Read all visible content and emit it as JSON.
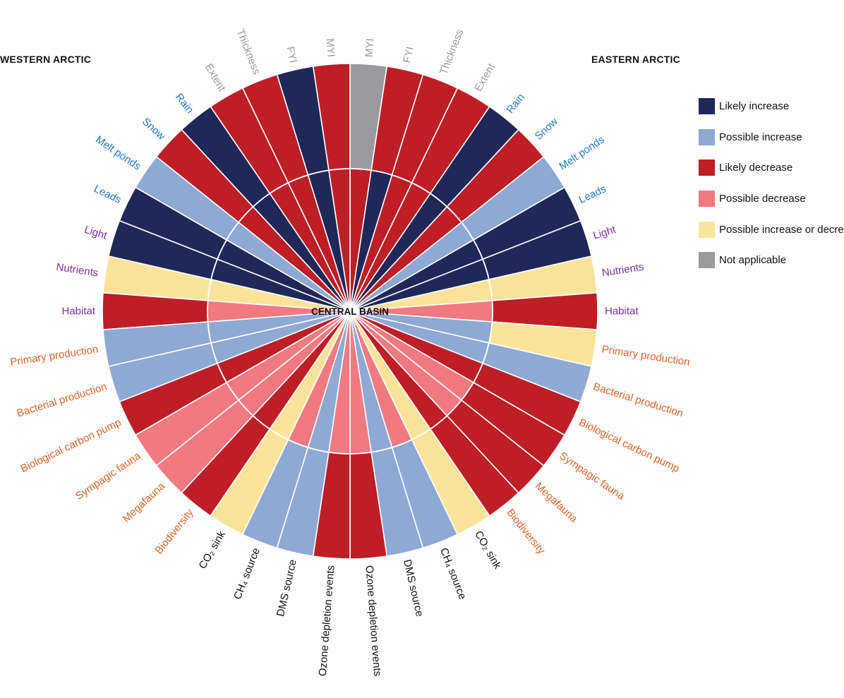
{
  "titles": {
    "western": "WESTERN ARCTIC",
    "eastern": "EASTERN ARCTIC",
    "center": "CENTRAL BASIN"
  },
  "legend": [
    {
      "key": "likely_increase",
      "label": "Likely increase",
      "color": "#1f2859"
    },
    {
      "key": "possible_increase",
      "label": "Possible increase",
      "color": "#8fa9d5"
    },
    {
      "key": "likely_decrease",
      "label": "Likely decrease",
      "color": "#be1e26"
    },
    {
      "key": "possible_decrease",
      "label": "Possible decrease",
      "color": "#f17a82"
    },
    {
      "key": "possible_either",
      "label": "Possible increase or decrease",
      "color": "#fbe49a"
    },
    {
      "key": "not_applicable",
      "label": "Not applicable",
      "color": "#9b9b9d"
    }
  ],
  "chart_data": {
    "type": "radial",
    "categories": [
      "MYI",
      "FYI",
      "Thickness",
      "Extent",
      "Rain",
      "Snow",
      "Melt ponds",
      "Leads",
      "Light",
      "Nutrients",
      "Habitat",
      "Primary production",
      "Bacterial production",
      "Biological carbon pump",
      "Sympagic fauna",
      "Megafauna",
      "Biodiversity",
      "CO₂ sink",
      "CH₄ source",
      "DMS source",
      "Ozone depletion events"
    ],
    "category_groups": [
      {
        "color": "#9a9a9a",
        "members": [
          "MYI",
          "FYI",
          "Thickness",
          "Extent"
        ]
      },
      {
        "color": "#1f78c8",
        "members": [
          "Rain",
          "Snow",
          "Melt ponds",
          "Leads"
        ]
      },
      {
        "color": "#7b2fa6",
        "members": [
          "Light",
          "Nutrients",
          "Habitat"
        ]
      },
      {
        "color": "#e06325",
        "members": [
          "Primary production",
          "Bacterial production",
          "Biological carbon pump",
          "Sympagic fauna",
          "Megafauna",
          "Biodiversity"
        ]
      },
      {
        "color": "#111111",
        "members": [
          "CO₂ sink",
          "CH₄ source",
          "DMS source",
          "Ozone depletion events"
        ]
      }
    ],
    "western_arctic": {
      "outer_ring": [
        "likely_decrease",
        "likely_increase",
        "likely_decrease",
        "likely_decrease",
        "likely_increase",
        "likely_decrease",
        "possible_increase",
        "likely_increase",
        "likely_increase",
        "possible_either",
        "likely_decrease",
        "possible_increase",
        "possible_increase",
        "likely_decrease",
        "possible_decrease",
        "possible_decrease",
        "likely_decrease",
        "possible_either",
        "possible_increase",
        "possible_increase",
        "likely_decrease"
      ],
      "central_basin_ring": [
        "likely_decrease",
        "likely_increase",
        "likely_decrease",
        "likely_decrease",
        "likely_increase",
        "likely_decrease",
        "possible_increase",
        "likely_increase",
        "likely_increase",
        "possible_either",
        "possible_decrease",
        "possible_increase",
        "possible_increase",
        "likely_decrease",
        "possible_decrease",
        "possible_decrease",
        "likely_decrease",
        "possible_either",
        "possible_decrease",
        "possible_increase",
        "possible_decrease"
      ]
    },
    "eastern_arctic": {
      "outer_ring": [
        "not_applicable",
        "likely_decrease",
        "likely_decrease",
        "likely_decrease",
        "likely_increase",
        "likely_decrease",
        "possible_increase",
        "likely_increase",
        "likely_increase",
        "possible_either",
        "likely_decrease",
        "possible_either",
        "possible_increase",
        "likely_decrease",
        "likely_decrease",
        "likely_decrease",
        "likely_decrease",
        "possible_either",
        "possible_increase",
        "possible_increase",
        "likely_decrease"
      ],
      "central_basin_ring": [
        "likely_decrease",
        "likely_increase",
        "likely_decrease",
        "likely_decrease",
        "likely_increase",
        "likely_decrease",
        "possible_increase",
        "likely_increase",
        "likely_increase",
        "possible_either",
        "possible_decrease",
        "possible_increase",
        "possible_increase",
        "likely_decrease",
        "possible_decrease",
        "possible_decrease",
        "likely_decrease",
        "possible_either",
        "possible_decrease",
        "possible_increase",
        "possible_decrease"
      ]
    }
  }
}
